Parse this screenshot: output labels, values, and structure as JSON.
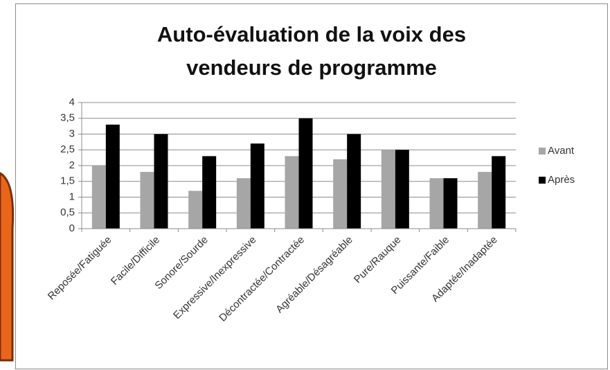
{
  "chart_data": {
    "type": "bar",
    "title": "Auto-évaluation de la voix des vendeurs de programme",
    "categories": [
      "Reposée/Fatiguée",
      "Facile/Difficile",
      "Sonore/Sourde",
      "Expressive/Inexpressive",
      "Décontractée/Contractée",
      "Agréable/Désagréable",
      "Pure/Rauque",
      "Puissante/Faible",
      "Adaptée/Inadaptée"
    ],
    "series": [
      {
        "name": "Avant",
        "color": "#a6a6a6",
        "values": [
          2.0,
          1.8,
          1.2,
          1.6,
          2.3,
          2.2,
          2.5,
          1.6,
          1.8
        ]
      },
      {
        "name": "Après",
        "color": "#000000",
        "values": [
          3.3,
          3.0,
          2.3,
          2.7,
          3.5,
          3.0,
          2.5,
          1.6,
          2.3
        ]
      }
    ],
    "ylim": [
      0,
      4
    ],
    "yticks": [
      0,
      {
        "value": 0.5,
        "label": "0,5"
      },
      1,
      {
        "value": 1.5,
        "label": "1,5"
      },
      2,
      {
        "value": 2.5,
        "label": "2,5"
      },
      3,
      {
        "value": 3.5,
        "label": "3,5"
      },
      4
    ],
    "grid": true,
    "legend": "right"
  }
}
